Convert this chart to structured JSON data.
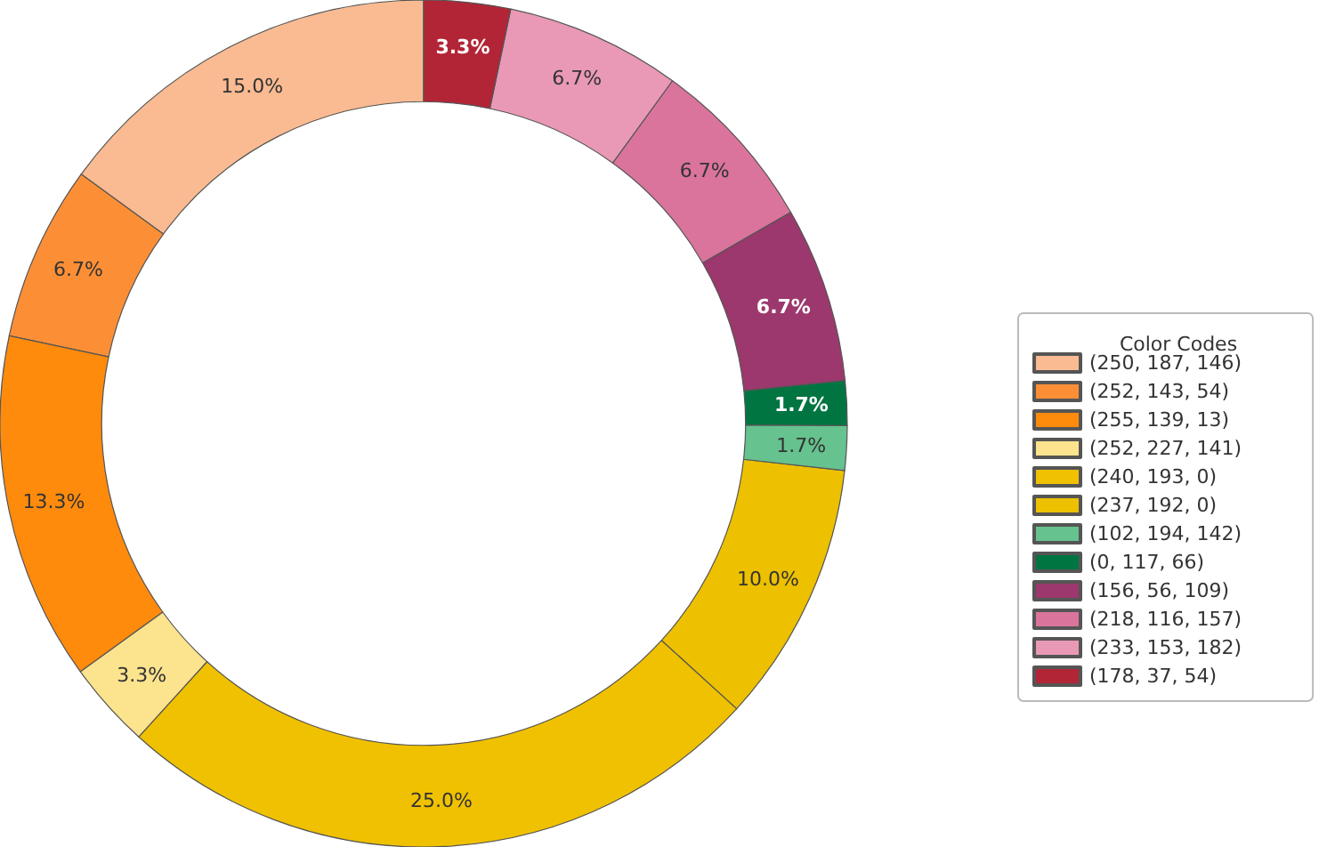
{
  "chart_data": {
    "type": "donut",
    "legend_title": "Color Codes",
    "legend": "right",
    "categories": [
      "(250, 187, 146)",
      "(252, 143, 54)",
      "(255, 139, 13)",
      "(252, 227, 141)",
      "(240, 193, 0)",
      "(237, 192, 0)",
      "(102, 194, 142)",
      "(0, 117, 66)",
      "(156, 56, 109)",
      "(218, 116, 157)",
      "(233, 153, 182)",
      "(178, 37, 54)"
    ],
    "values": [
      15.0,
      6.7,
      13.3,
      3.3,
      25.0,
      10.0,
      1.7,
      1.7,
      6.7,
      6.7,
      6.7,
      3.3
    ],
    "value_labels": [
      "15.0%",
      "6.7%",
      "13.3%",
      "3.3%",
      "25.0%",
      "10.0%",
      "1.7%",
      "1.7%",
      "6.7%",
      "6.7%",
      "6.7%",
      "3.3%"
    ],
    "colors": [
      "#fabb92",
      "#fc8f36",
      "#ff8b0d",
      "#fce38d",
      "#f0c100",
      "#edc000",
      "#66c28e",
      "#007542",
      "#9c386d",
      "#da749d",
      "#e999b6",
      "#b22536"
    ]
  }
}
